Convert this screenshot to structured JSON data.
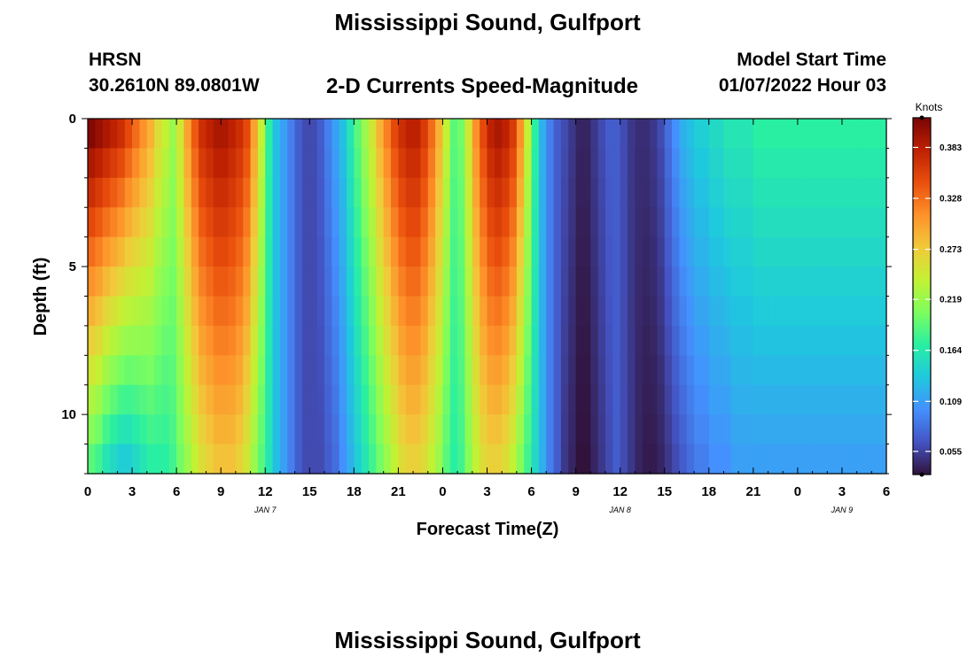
{
  "header": {
    "title": "Mississippi Sound, Gulfport",
    "station": "HRSN",
    "coords": "30.2610N  89.0801W",
    "subtitle": "2-D Currents Speed-Magnitude",
    "model_start_label": "Model Start Time",
    "model_start_value": "01/07/2022 Hour 03"
  },
  "footer": {
    "title": "Mississippi Sound, Gulfport"
  },
  "chart_data": {
    "type": "heatmap",
    "title": "2-D Currents Speed-Magnitude",
    "xlabel": "Forecast Time(Z)",
    "ylabel": "Depth (ft)",
    "x_range_hours": [
      0,
      54
    ],
    "y_range_ft": [
      0,
      12
    ],
    "y_inverted": true,
    "x_tick_labels": [
      "0",
      "3",
      "6",
      "9",
      "12",
      "15",
      "18",
      "21",
      "0",
      "3",
      "6",
      "9",
      "12",
      "15",
      "18",
      "21",
      "0",
      "3",
      "6"
    ],
    "y_tick_labels": [
      "0",
      "5",
      "10"
    ],
    "y_tick_values": [
      0,
      5,
      10
    ],
    "date_labels": [
      {
        "text": "JAN 7",
        "hour": 12
      },
      {
        "text": "JAN 8",
        "hour": 36
      },
      {
        "text": "JAN 9",
        "hour": 51
      }
    ],
    "colorbar": {
      "title": "Knots",
      "min": 0.03,
      "max": 0.415,
      "ticks": [
        "0.055",
        "0.109",
        "0.164",
        "0.219",
        "0.273",
        "0.328",
        "0.383"
      ],
      "tick_values": [
        0.055,
        0.109,
        0.164,
        0.219,
        0.273,
        0.328,
        0.383
      ],
      "colormap": [
        "#30123b",
        "#4454c4",
        "#4490fe",
        "#1fc8de",
        "#29efa2",
        "#7dfe5e",
        "#c3f133",
        "#f1ca3a",
        "#fe922a",
        "#ea4f0d",
        "#be2102",
        "#7a0403"
      ]
    },
    "time_step_hours": 0.5,
    "depth_step_ft": 1,
    "surface_speed_knots": [
      0.41,
      0.4,
      0.39,
      0.38,
      0.37,
      0.35,
      0.33,
      0.31,
      0.29,
      0.26,
      0.24,
      0.22,
      0.25,
      0.3,
      0.34,
      0.37,
      0.38,
      0.39,
      0.39,
      0.38,
      0.37,
      0.35,
      0.3,
      0.24,
      0.17,
      0.13,
      0.11,
      0.09,
      0.07,
      0.06,
      0.06,
      0.07,
      0.09,
      0.11,
      0.13,
      0.16,
      0.19,
      0.22,
      0.25,
      0.29,
      0.32,
      0.35,
      0.37,
      0.38,
      0.38,
      0.36,
      0.33,
      0.29,
      0.24,
      0.19,
      0.2,
      0.25,
      0.31,
      0.35,
      0.38,
      0.39,
      0.38,
      0.36,
      0.31,
      0.24,
      0.17,
      0.12,
      0.09,
      0.07,
      0.06,
      0.05,
      0.04,
      0.04,
      0.05,
      0.06,
      0.07,
      0.07,
      0.06,
      0.05,
      0.045,
      0.045,
      0.05,
      0.06,
      0.08,
      0.1,
      0.12,
      0.13,
      0.14,
      0.14,
      0.15,
      0.15,
      0.16,
      0.16,
      0.16,
      0.16,
      0.17,
      0.17,
      0.17,
      0.17,
      0.17,
      0.17,
      0.17,
      0.17,
      0.17,
      0.17,
      0.17,
      0.17,
      0.17,
      0.17,
      0.17,
      0.17,
      0.17,
      0.17
    ],
    "bottom_speed_knots": [
      0.19,
      0.18,
      0.16,
      0.15,
      0.14,
      0.14,
      0.15,
      0.16,
      0.17,
      0.17,
      0.17,
      0.18,
      0.2,
      0.22,
      0.24,
      0.26,
      0.27,
      0.28,
      0.28,
      0.28,
      0.27,
      0.25,
      0.22,
      0.19,
      0.16,
      0.13,
      0.11,
      0.09,
      0.07,
      0.06,
      0.06,
      0.06,
      0.07,
      0.08,
      0.1,
      0.12,
      0.14,
      0.16,
      0.18,
      0.2,
      0.22,
      0.24,
      0.26,
      0.27,
      0.27,
      0.26,
      0.24,
      0.22,
      0.19,
      0.17,
      0.18,
      0.21,
      0.24,
      0.26,
      0.27,
      0.27,
      0.26,
      0.24,
      0.21,
      0.18,
      0.15,
      0.12,
      0.09,
      0.07,
      0.05,
      0.04,
      0.03,
      0.03,
      0.04,
      0.05,
      0.06,
      0.07,
      0.06,
      0.05,
      0.04,
      0.035,
      0.035,
      0.04,
      0.05,
      0.06,
      0.07,
      0.08,
      0.09,
      0.09,
      0.1,
      0.1,
      0.1,
      0.11,
      0.11,
      0.11,
      0.11,
      0.11,
      0.11,
      0.11,
      0.11,
      0.11,
      0.11,
      0.11,
      0.11,
      0.11,
      0.11,
      0.11,
      0.11,
      0.11,
      0.11,
      0.11,
      0.11,
      0.11
    ]
  }
}
